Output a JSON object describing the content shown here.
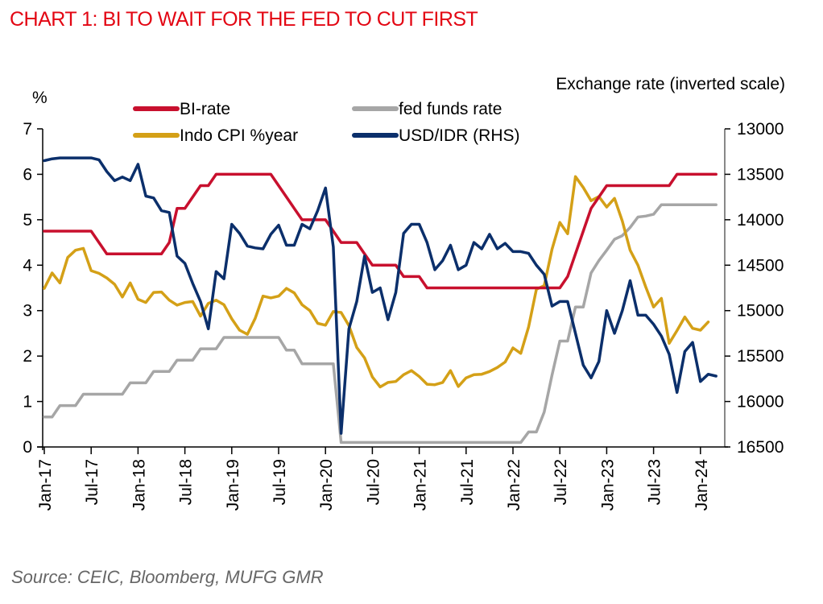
{
  "title": "CHART 1: BI TO WAIT FOR THE FED TO CUT FIRST",
  "source": "Source: CEIC, Bloomberg, MUFG GMR",
  "chart_data": {
    "type": "line",
    "title": "CHART 1: BI TO WAIT FOR THE FED TO CUT FIRST",
    "ylabel": "%",
    "y2label": "Exchange rate (inverted scale)",
    "xlabel": "",
    "ylim": [
      0,
      7
    ],
    "y2lim": [
      13000,
      16500
    ],
    "y2_inverted": true,
    "yticks": [
      "0",
      "1",
      "2",
      "3",
      "4",
      "5",
      "6",
      "7"
    ],
    "y2ticks": [
      "13000",
      "13500",
      "14000",
      "14500",
      "15000",
      "15500",
      "16000",
      "16500"
    ],
    "xticks": [
      "Jan-17",
      "Jul-17",
      "Jan-18",
      "Jul-18",
      "Jan-19",
      "Jul-19",
      "Jan-20",
      "Jul-20",
      "Jan-21",
      "Jul-21",
      "Jan-22",
      "Jul-22",
      "Jan-23",
      "Jul-23",
      "Jan-24"
    ],
    "x_start": "Jan-17",
    "x_frequency": "monthly",
    "grid": false,
    "legend_position": "top",
    "series": [
      {
        "name": "BI-rate",
        "axis": "left",
        "color": "#c8102e",
        "values": [
          4.75,
          4.75,
          4.75,
          4.75,
          4.75,
          4.75,
          4.75,
          4.5,
          4.25,
          4.25,
          4.25,
          4.25,
          4.25,
          4.25,
          4.25,
          4.25,
          4.5,
          5.25,
          5.25,
          5.5,
          5.75,
          5.75,
          6.0,
          6.0,
          6.0,
          6.0,
          6.0,
          6.0,
          6.0,
          6.0,
          5.75,
          5.5,
          5.25,
          5.0,
          5.0,
          5.0,
          5.0,
          4.75,
          4.5,
          4.5,
          4.5,
          4.25,
          4.0,
          4.0,
          4.0,
          4.0,
          3.75,
          3.75,
          3.75,
          3.5,
          3.5,
          3.5,
          3.5,
          3.5,
          3.5,
          3.5,
          3.5,
          3.5,
          3.5,
          3.5,
          3.5,
          3.5,
          3.5,
          3.5,
          3.5,
          3.5,
          3.5,
          3.75,
          4.25,
          4.75,
          5.25,
          5.5,
          5.75,
          5.75,
          5.75,
          5.75,
          5.75,
          5.75,
          5.75,
          5.75,
          5.75,
          6.0,
          6.0,
          6.0,
          6.0,
          6.0,
          6.0
        ]
      },
      {
        "name": "fed funds rate",
        "axis": "left",
        "color": "#a6a6a6",
        "values": [
          0.66,
          0.66,
          0.91,
          0.91,
          0.91,
          1.16,
          1.16,
          1.16,
          1.16,
          1.16,
          1.16,
          1.41,
          1.41,
          1.41,
          1.66,
          1.66,
          1.66,
          1.91,
          1.91,
          1.91,
          2.16,
          2.16,
          2.16,
          2.41,
          2.41,
          2.41,
          2.41,
          2.41,
          2.41,
          2.41,
          2.41,
          2.13,
          2.13,
          1.83,
          1.83,
          1.83,
          1.83,
          1.83,
          0.1,
          0.1,
          0.1,
          0.1,
          0.1,
          0.1,
          0.1,
          0.1,
          0.1,
          0.1,
          0.1,
          0.1,
          0.1,
          0.1,
          0.1,
          0.1,
          0.1,
          0.1,
          0.1,
          0.1,
          0.1,
          0.1,
          0.1,
          0.1,
          0.33,
          0.33,
          0.77,
          1.58,
          2.33,
          2.33,
          3.08,
          3.08,
          3.83,
          4.1,
          4.33,
          4.57,
          4.65,
          4.83,
          5.06,
          5.08,
          5.12,
          5.33,
          5.33,
          5.33,
          5.33,
          5.33,
          5.33,
          5.33,
          5.33
        ]
      },
      {
        "name": "Indo CPI %year",
        "axis": "left",
        "color": "#d4a017",
        "values": [
          3.49,
          3.83,
          3.61,
          4.17,
          4.33,
          4.37,
          3.88,
          3.82,
          3.72,
          3.58,
          3.3,
          3.61,
          3.25,
          3.18,
          3.4,
          3.41,
          3.23,
          3.12,
          3.18,
          3.2,
          2.88,
          3.16,
          3.23,
          3.13,
          2.82,
          2.57,
          2.48,
          2.83,
          3.32,
          3.28,
          3.32,
          3.49,
          3.39,
          3.13,
          3.0,
          2.72,
          2.68,
          2.98,
          2.96,
          2.67,
          2.19,
          1.96,
          1.54,
          1.32,
          1.42,
          1.44,
          1.59,
          1.68,
          1.55,
          1.38,
          1.37,
          1.42,
          1.68,
          1.33,
          1.52,
          1.59,
          1.6,
          1.66,
          1.75,
          1.87,
          2.18,
          2.06,
          2.64,
          3.47,
          3.55,
          4.35,
          4.94,
          4.69,
          5.95,
          5.71,
          5.42,
          5.51,
          5.28,
          5.47,
          4.97,
          4.33,
          4.0,
          3.52,
          3.08,
          3.27,
          2.28,
          2.56,
          2.86,
          2.61,
          2.57,
          2.75
        ]
      },
      {
        "name": "USD/IDR (RHS)",
        "axis": "right",
        "color": "#0b2f6b",
        "values": [
          13350,
          13330,
          13320,
          13320,
          13320,
          13320,
          13320,
          13340,
          13470,
          13570,
          13530,
          13570,
          13390,
          13740,
          13760,
          13900,
          13920,
          14400,
          14480,
          14700,
          14900,
          15200,
          14570,
          14650,
          14050,
          14150,
          14290,
          14310,
          14320,
          14160,
          14060,
          14280,
          14280,
          14050,
          14100,
          13900,
          13650,
          14300,
          16350,
          15200,
          14900,
          14400,
          14800,
          14750,
          15100,
          14800,
          14150,
          14050,
          14050,
          14250,
          14550,
          14450,
          14280,
          14550,
          14500,
          14250,
          14320,
          14160,
          14320,
          14260,
          14350,
          14350,
          14370,
          14500,
          14600,
          14950,
          14900,
          14900,
          15250,
          15600,
          15740,
          15560,
          15000,
          15250,
          15000,
          14670,
          15050,
          15050,
          15150,
          15280,
          15480,
          15900,
          15450,
          15350,
          15780,
          15700,
          15720
        ]
      }
    ]
  }
}
